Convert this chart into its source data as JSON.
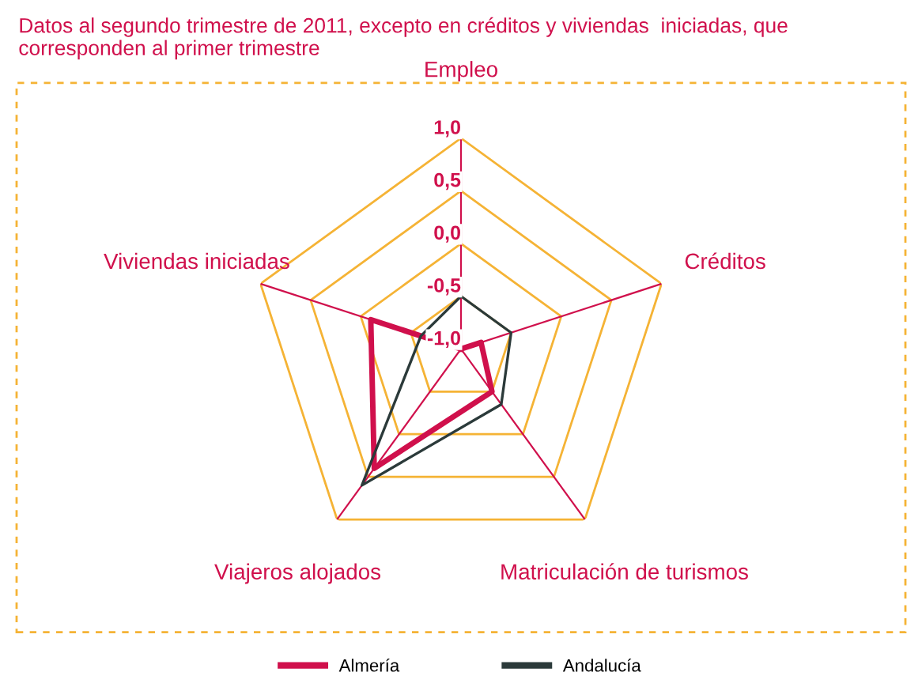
{
  "chart_data": {
    "type": "radar",
    "title": "Datos al segundo trimestre de 2011, excepto en créditos y viviendas  iniciadas, que corresponden al primer trimestre",
    "categories": [
      "Empleo",
      "Créditos",
      "Matriculación de turismos",
      "Viajeros alojados",
      "Viviendas iniciadas"
    ],
    "series": [
      {
        "name": "Almería",
        "color": "#d0104c",
        "values": [
          -1.0,
          -0.8,
          -0.5,
          0.4,
          -0.1
        ]
      },
      {
        "name": "Andalucía",
        "color": "#2b3a3a",
        "values": [
          -0.5,
          -0.5,
          -0.35,
          0.6,
          -0.6
        ]
      }
    ],
    "ylim": [
      -1.0,
      1.0
    ],
    "yticks": [
      {
        "value": -1.0,
        "label": "-1,0"
      },
      {
        "value": -0.5,
        "label": "-0,5"
      },
      {
        "value": 0.0,
        "label": "0,0"
      },
      {
        "value": 0.5,
        "label": "0,5"
      },
      {
        "value": 1.0,
        "label": "1,0"
      }
    ],
    "grid": true,
    "legend": "bottom"
  }
}
